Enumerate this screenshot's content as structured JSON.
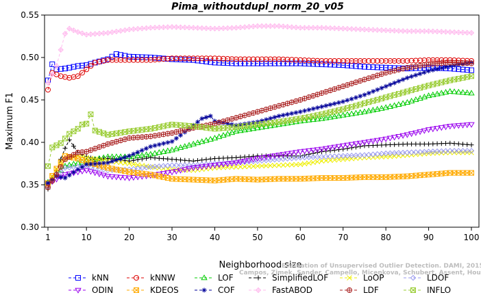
{
  "chart_data": {
    "type": "line",
    "title": "Pima_withoutdupl_norm_20_v05",
    "xlabel": "Neighborhood size",
    "ylabel": "Maximum F1",
    "xlim": [
      1,
      100
    ],
    "ylim": [
      0.3,
      0.55
    ],
    "xticks": [
      1,
      10,
      20,
      30,
      40,
      50,
      60,
      70,
      80,
      90,
      100
    ],
    "yticks": [
      0.3,
      0.35,
      0.4,
      0.45,
      0.5,
      0.55
    ],
    "legend_position": "bottom",
    "watermark": [
      "Campos, Zimek, Sander, Campello, Micenkova, Schubert, Assent, Houle",
      "Evaluation of Unsupervised Outlier Detection. DAMI, 2015."
    ],
    "series": [
      {
        "name": "kNN",
        "color": "#0000ff",
        "marker": "square",
        "line": "dashed",
        "points": [
          [
            1,
            0.473
          ],
          [
            2,
            0.492
          ],
          [
            3,
            0.486
          ],
          [
            5,
            0.487
          ],
          [
            8,
            0.49
          ],
          [
            10,
            0.491
          ],
          [
            12,
            0.494
          ],
          [
            15,
            0.498
          ],
          [
            17,
            0.504
          ],
          [
            20,
            0.501
          ],
          [
            25,
            0.5
          ],
          [
            30,
            0.498
          ],
          [
            35,
            0.497
          ],
          [
            40,
            0.494
          ],
          [
            45,
            0.493
          ],
          [
            50,
            0.493
          ],
          [
            55,
            0.493
          ],
          [
            60,
            0.493
          ],
          [
            65,
            0.492
          ],
          [
            70,
            0.491
          ],
          [
            75,
            0.489
          ],
          [
            80,
            0.488
          ],
          [
            85,
            0.487
          ],
          [
            90,
            0.488
          ],
          [
            95,
            0.487
          ],
          [
            100,
            0.485
          ]
        ]
      },
      {
        "name": "kNNW",
        "color": "#dd0000",
        "marker": "circle",
        "line": "dashed",
        "points": [
          [
            1,
            0.462
          ],
          [
            2,
            0.482
          ],
          [
            4,
            0.478
          ],
          [
            6,
            0.476
          ],
          [
            8,
            0.478
          ],
          [
            10,
            0.486
          ],
          [
            12,
            0.494
          ],
          [
            15,
            0.497
          ],
          [
            20,
            0.497
          ],
          [
            25,
            0.497
          ],
          [
            30,
            0.499
          ],
          [
            35,
            0.499
          ],
          [
            40,
            0.499
          ],
          [
            45,
            0.498
          ],
          [
            50,
            0.498
          ],
          [
            55,
            0.498
          ],
          [
            60,
            0.497
          ],
          [
            65,
            0.496
          ],
          [
            70,
            0.496
          ],
          [
            75,
            0.496
          ],
          [
            80,
            0.496
          ],
          [
            85,
            0.496
          ],
          [
            90,
            0.497
          ],
          [
            95,
            0.497
          ],
          [
            100,
            0.496
          ]
        ]
      },
      {
        "name": "LOF",
        "color": "#00cc00",
        "marker": "triangle-up",
        "line": "dashed",
        "points": [
          [
            1,
            0.353
          ],
          [
            5,
            0.372
          ],
          [
            10,
            0.378
          ],
          [
            15,
            0.383
          ],
          [
            20,
            0.383
          ],
          [
            25,
            0.386
          ],
          [
            30,
            0.391
          ],
          [
            35,
            0.398
          ],
          [
            40,
            0.405
          ],
          [
            45,
            0.413
          ],
          [
            50,
            0.417
          ],
          [
            55,
            0.421
          ],
          [
            60,
            0.425
          ],
          [
            65,
            0.428
          ],
          [
            70,
            0.432
          ],
          [
            75,
            0.436
          ],
          [
            80,
            0.441
          ],
          [
            85,
            0.447
          ],
          [
            90,
            0.455
          ],
          [
            95,
            0.46
          ],
          [
            100,
            0.458
          ]
        ]
      },
      {
        "name": "SimplifiedLOF",
        "color": "#000000",
        "marker": "plus",
        "line": "dashed",
        "points": [
          [
            1,
            0.345
          ],
          [
            3,
            0.367
          ],
          [
            5,
            0.393
          ],
          [
            6,
            0.403
          ],
          [
            8,
            0.388
          ],
          [
            10,
            0.383
          ],
          [
            12,
            0.38
          ],
          [
            15,
            0.381
          ],
          [
            20,
            0.378
          ],
          [
            25,
            0.382
          ],
          [
            30,
            0.38
          ],
          [
            35,
            0.378
          ],
          [
            40,
            0.381
          ],
          [
            45,
            0.382
          ],
          [
            50,
            0.384
          ],
          [
            55,
            0.384
          ],
          [
            60,
            0.384
          ],
          [
            65,
            0.389
          ],
          [
            70,
            0.392
          ],
          [
            75,
            0.396
          ],
          [
            80,
            0.397
          ],
          [
            85,
            0.398
          ],
          [
            90,
            0.398
          ],
          [
            95,
            0.399
          ],
          [
            100,
            0.397
          ]
        ]
      },
      {
        "name": "LoOP",
        "color": "#eeee00",
        "marker": "x",
        "line": "dashed",
        "points": [
          [
            1,
            0.35
          ],
          [
            3,
            0.368
          ],
          [
            5,
            0.38
          ],
          [
            8,
            0.384
          ],
          [
            10,
            0.382
          ],
          [
            15,
            0.378
          ],
          [
            20,
            0.375
          ],
          [
            25,
            0.371
          ],
          [
            30,
            0.368
          ],
          [
            35,
            0.367
          ],
          [
            40,
            0.37
          ],
          [
            45,
            0.371
          ],
          [
            50,
            0.372
          ],
          [
            55,
            0.373
          ],
          [
            60,
            0.374
          ],
          [
            65,
            0.378
          ],
          [
            70,
            0.38
          ],
          [
            75,
            0.382
          ],
          [
            80,
            0.383
          ],
          [
            85,
            0.385
          ],
          [
            90,
            0.387
          ],
          [
            95,
            0.388
          ],
          [
            100,
            0.388
          ]
        ]
      },
      {
        "name": "LDOF",
        "color": "#9999ee",
        "marker": "diamond",
        "line": "dashed",
        "points": [
          [
            1,
            0.348
          ],
          [
            3,
            0.362
          ],
          [
            5,
            0.37
          ],
          [
            10,
            0.372
          ],
          [
            15,
            0.367
          ],
          [
            20,
            0.368
          ],
          [
            25,
            0.371
          ],
          [
            30,
            0.373
          ],
          [
            35,
            0.373
          ],
          [
            40,
            0.375
          ],
          [
            45,
            0.376
          ],
          [
            50,
            0.378
          ],
          [
            55,
            0.38
          ],
          [
            60,
            0.382
          ],
          [
            65,
            0.383
          ],
          [
            70,
            0.384
          ],
          [
            75,
            0.385
          ],
          [
            80,
            0.387
          ],
          [
            85,
            0.388
          ],
          [
            90,
            0.389
          ],
          [
            95,
            0.39
          ],
          [
            100,
            0.39
          ]
        ]
      },
      {
        "name": "ODIN",
        "color": "#9900ee",
        "marker": "triangle-down",
        "line": "dashed",
        "points": [
          [
            1,
            0.351
          ],
          [
            5,
            0.362
          ],
          [
            10,
            0.367
          ],
          [
            15,
            0.36
          ],
          [
            20,
            0.358
          ],
          [
            25,
            0.361
          ],
          [
            30,
            0.365
          ],
          [
            35,
            0.37
          ],
          [
            40,
            0.373
          ],
          [
            45,
            0.376
          ],
          [
            50,
            0.381
          ],
          [
            55,
            0.385
          ],
          [
            60,
            0.389
          ],
          [
            65,
            0.392
          ],
          [
            70,
            0.396
          ],
          [
            75,
            0.4
          ],
          [
            80,
            0.404
          ],
          [
            85,
            0.409
          ],
          [
            90,
            0.415
          ],
          [
            95,
            0.419
          ],
          [
            100,
            0.421
          ]
        ]
      },
      {
        "name": "KDEOS",
        "color": "#ffaa00",
        "marker": "square-x",
        "line": "dashed",
        "points": [
          [
            1,
            0.352
          ],
          [
            3,
            0.369
          ],
          [
            5,
            0.384
          ],
          [
            8,
            0.381
          ],
          [
            10,
            0.377
          ],
          [
            15,
            0.37
          ],
          [
            20,
            0.365
          ],
          [
            25,
            0.362
          ],
          [
            30,
            0.357
          ],
          [
            35,
            0.356
          ],
          [
            40,
            0.355
          ],
          [
            45,
            0.357
          ],
          [
            50,
            0.356
          ],
          [
            55,
            0.357
          ],
          [
            60,
            0.357
          ],
          [
            65,
            0.358
          ],
          [
            70,
            0.358
          ],
          [
            75,
            0.359
          ],
          [
            80,
            0.359
          ],
          [
            85,
            0.36
          ],
          [
            90,
            0.362
          ],
          [
            95,
            0.364
          ],
          [
            100,
            0.364
          ]
        ]
      },
      {
        "name": "COF",
        "color": "#000099",
        "marker": "asterisk",
        "line": "dashed",
        "points": [
          [
            1,
            0.352
          ],
          [
            3,
            0.36
          ],
          [
            5,
            0.358
          ],
          [
            8,
            0.368
          ],
          [
            10,
            0.374
          ],
          [
            15,
            0.376
          ],
          [
            20,
            0.384
          ],
          [
            25,
            0.395
          ],
          [
            30,
            0.401
          ],
          [
            33,
            0.412
          ],
          [
            35,
            0.42
          ],
          [
            37,
            0.428
          ],
          [
            39,
            0.431
          ],
          [
            40,
            0.425
          ],
          [
            45,
            0.42
          ],
          [
            50,
            0.424
          ],
          [
            55,
            0.431
          ],
          [
            60,
            0.436
          ],
          [
            65,
            0.442
          ],
          [
            70,
            0.448
          ],
          [
            75,
            0.456
          ],
          [
            80,
            0.466
          ],
          [
            85,
            0.476
          ],
          [
            90,
            0.484
          ],
          [
            95,
            0.49
          ],
          [
            100,
            0.494
          ]
        ]
      },
      {
        "name": "FastABOD",
        "color": "#ffbbee",
        "marker": "diamond-plus",
        "line": "dashed",
        "points": [
          [
            1,
            0.47
          ],
          [
            3,
            0.49
          ],
          [
            5,
            0.528
          ],
          [
            6,
            0.534
          ],
          [
            8,
            0.53
          ],
          [
            10,
            0.527
          ],
          [
            15,
            0.529
          ],
          [
            20,
            0.533
          ],
          [
            25,
            0.535
          ],
          [
            30,
            0.536
          ],
          [
            35,
            0.535
          ],
          [
            40,
            0.534
          ],
          [
            45,
            0.535
          ],
          [
            50,
            0.537
          ],
          [
            55,
            0.537
          ],
          [
            60,
            0.535
          ],
          [
            65,
            0.535
          ],
          [
            70,
            0.534
          ],
          [
            75,
            0.533
          ],
          [
            80,
            0.532
          ],
          [
            85,
            0.531
          ],
          [
            90,
            0.531
          ],
          [
            95,
            0.53
          ],
          [
            100,
            0.529
          ]
        ]
      },
      {
        "name": "LDF",
        "color": "#aa2222",
        "marker": "circle-plus",
        "line": "dashed",
        "points": [
          [
            1,
            0.347
          ],
          [
            3,
            0.362
          ],
          [
            5,
            0.38
          ],
          [
            8,
            0.388
          ],
          [
            10,
            0.389
          ],
          [
            15,
            0.398
          ],
          [
            20,
            0.405
          ],
          [
            25,
            0.407
          ],
          [
            30,
            0.411
          ],
          [
            35,
            0.417
          ],
          [
            40,
            0.422
          ],
          [
            45,
            0.429
          ],
          [
            50,
            0.436
          ],
          [
            55,
            0.443
          ],
          [
            60,
            0.45
          ],
          [
            65,
            0.458
          ],
          [
            70,
            0.466
          ],
          [
            75,
            0.474
          ],
          [
            80,
            0.482
          ],
          [
            85,
            0.488
          ],
          [
            90,
            0.492
          ],
          [
            95,
            0.494
          ],
          [
            100,
            0.493
          ]
        ]
      },
      {
        "name": "INFLO",
        "color": "#99cc33",
        "marker": "square-x",
        "line": "dashed",
        "points": [
          [
            1,
            0.372
          ],
          [
            2,
            0.394
          ],
          [
            4,
            0.399
          ],
          [
            6,
            0.41
          ],
          [
            8,
            0.416
          ],
          [
            9,
            0.421
          ],
          [
            10,
            0.422
          ],
          [
            11,
            0.433
          ],
          [
            12,
            0.414
          ],
          [
            15,
            0.409
          ],
          [
            20,
            0.413
          ],
          [
            25,
            0.416
          ],
          [
            30,
            0.421
          ],
          [
            35,
            0.419
          ],
          [
            40,
            0.416
          ],
          [
            45,
            0.418
          ],
          [
            50,
            0.421
          ],
          [
            55,
            0.424
          ],
          [
            60,
            0.428
          ],
          [
            65,
            0.433
          ],
          [
            70,
            0.439
          ],
          [
            75,
            0.446
          ],
          [
            80,
            0.453
          ],
          [
            85,
            0.46
          ],
          [
            90,
            0.467
          ],
          [
            95,
            0.473
          ],
          [
            100,
            0.478
          ]
        ]
      }
    ]
  }
}
